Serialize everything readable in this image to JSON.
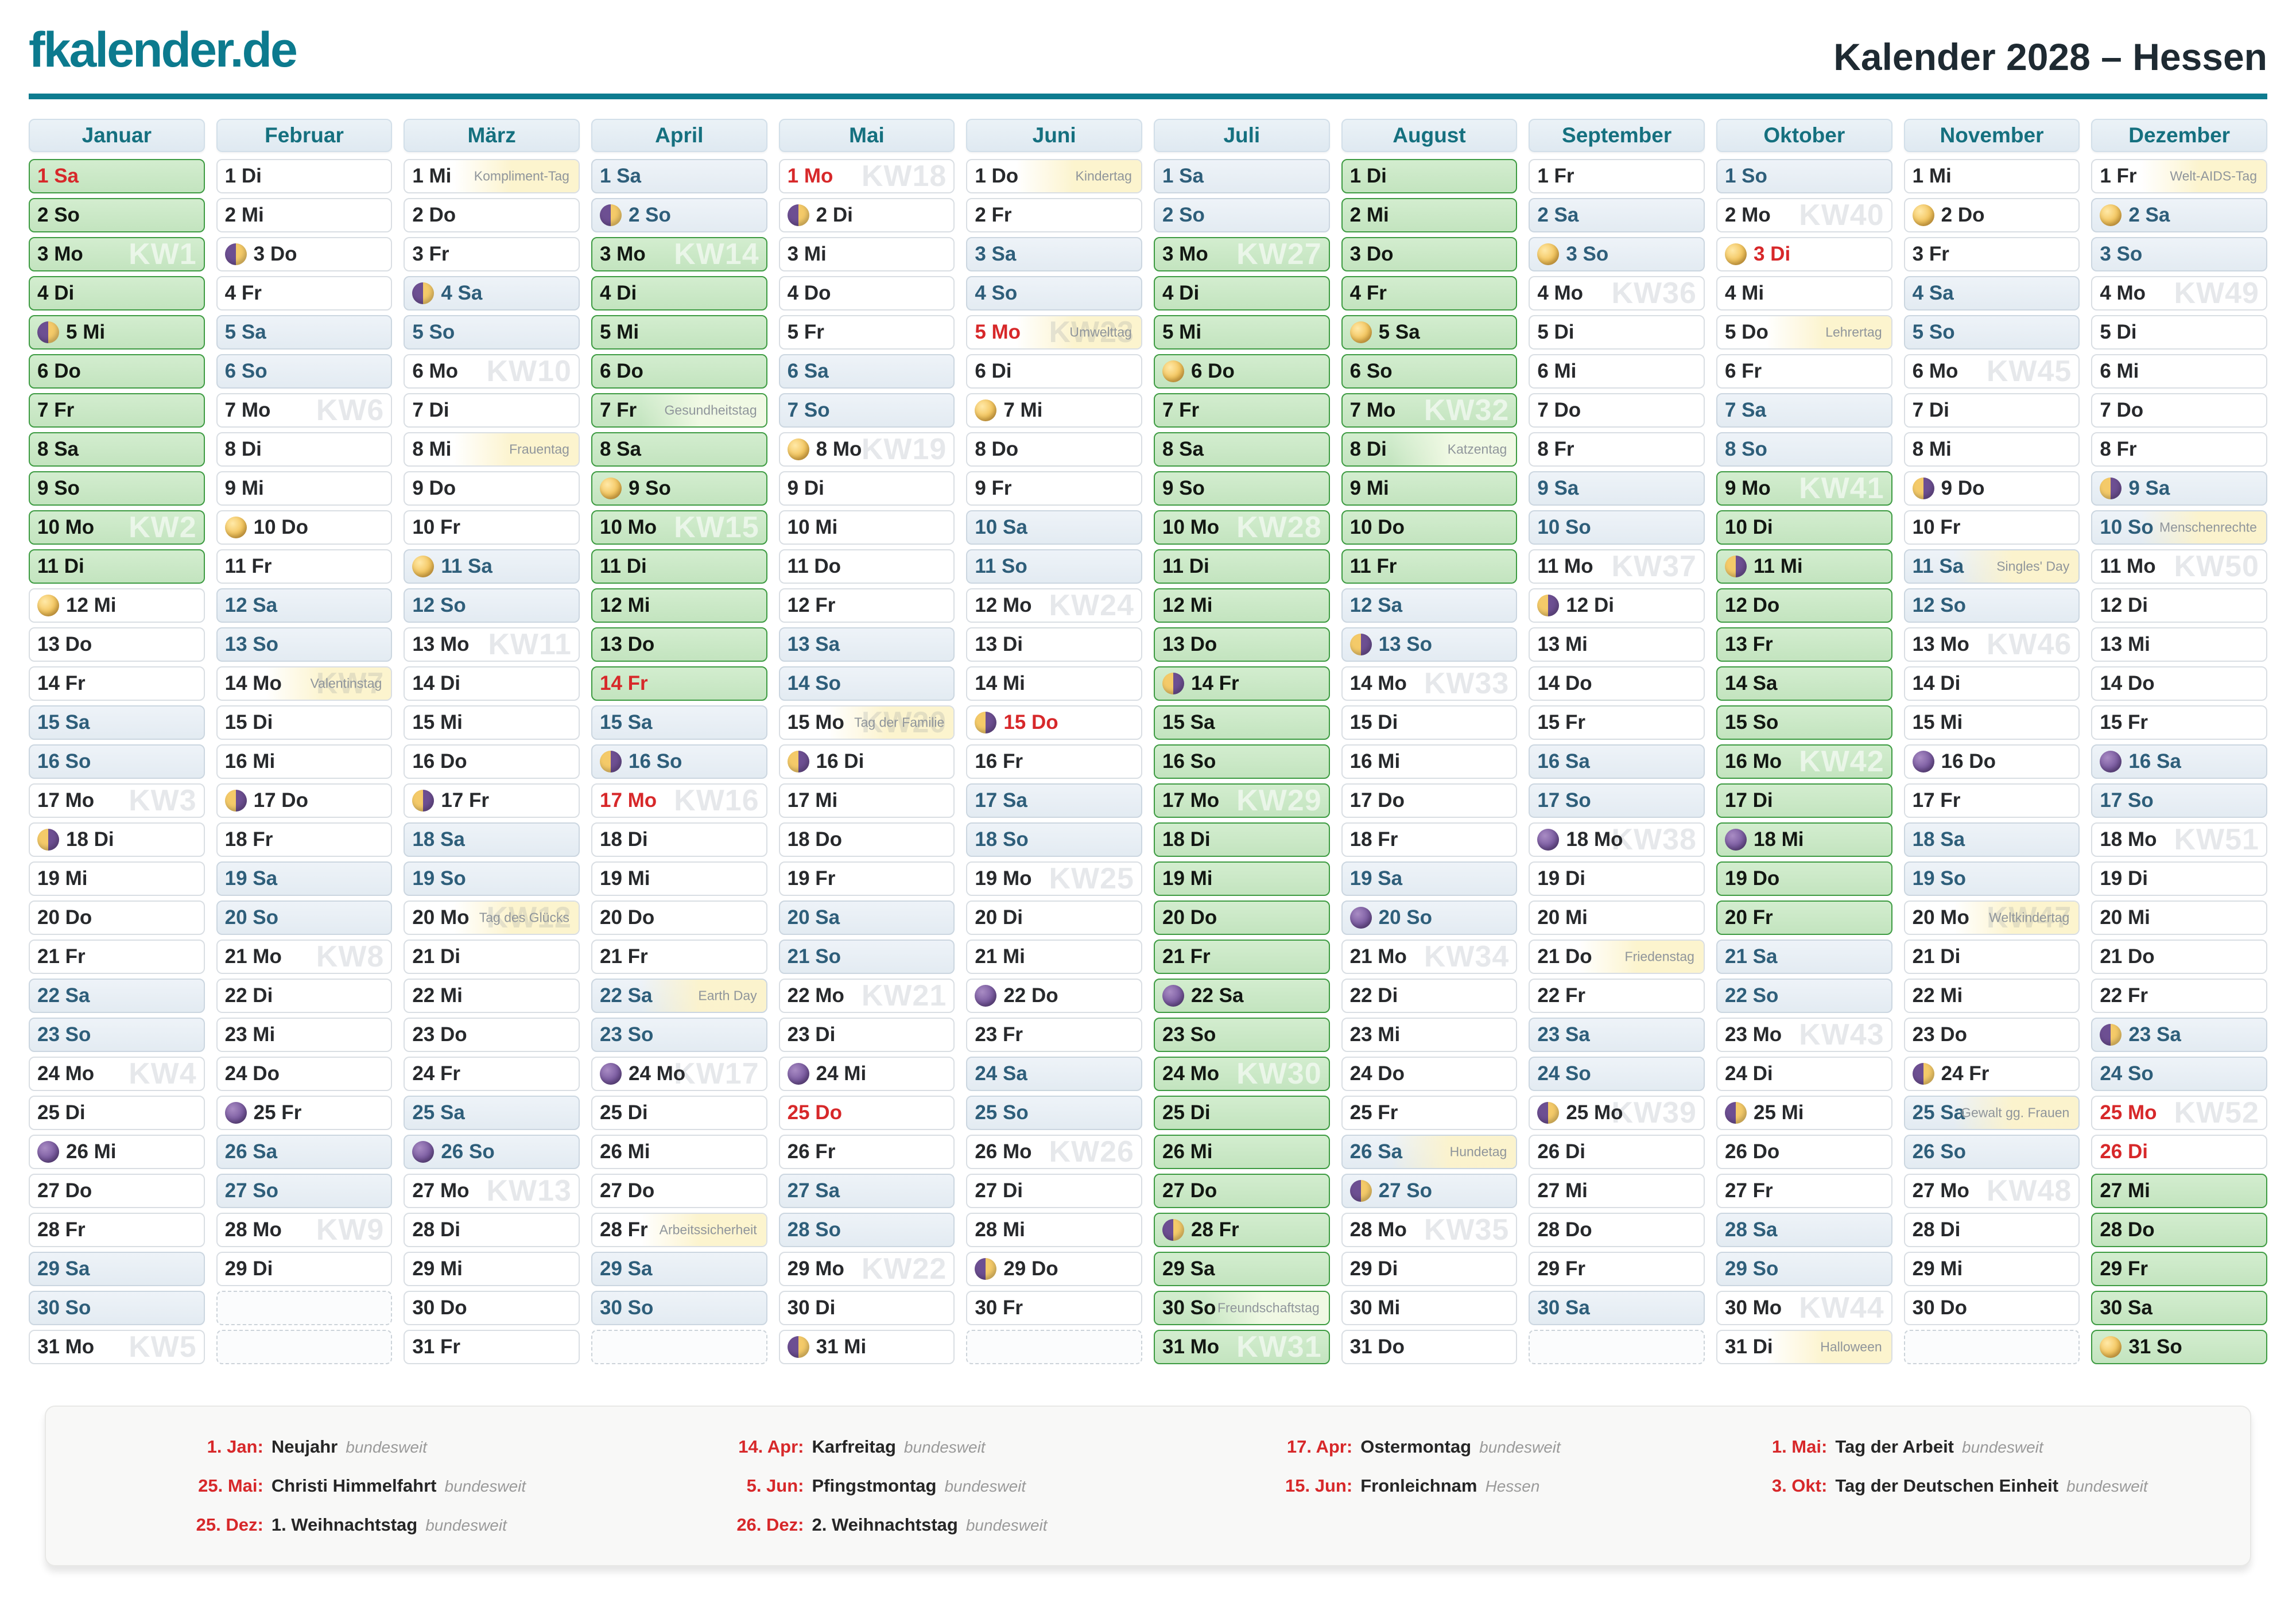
{
  "header": {
    "logo": "fkalender.de",
    "title": "Kalender 2028 – Hessen"
  },
  "weekdays": [
    "Mo",
    "Di",
    "Mi",
    "Do",
    "Fr",
    "Sa",
    "So"
  ],
  "moon_phases": {
    "full": "full-moon",
    "new": "new-moon",
    "fq": "first-quarter-moon",
    "lq": "last-quarter-moon"
  },
  "colors": {
    "accent_teal": "#0e7c90",
    "holiday_red": "#d7282a",
    "ferien_green_bg": "#c9e7c5",
    "ferien_green_border": "#3d9b42",
    "weekend_bg": "#e9eff5",
    "note_highlight": "#fcf3cb"
  },
  "months": [
    {
      "name": "Januar",
      "len": 31,
      "first_wd": 5,
      "green": [
        [
          1,
          11
        ]
      ],
      "red": [
        1
      ],
      "moons": {
        "5": "fq",
        "12": "full",
        "18": "lq",
        "26": "new"
      },
      "kw": {
        "3": "KW1",
        "10": "KW2",
        "17": "KW3",
        "24": "KW4",
        "31": "KW5"
      },
      "notes": {}
    },
    {
      "name": "Februar",
      "len": 29,
      "first_wd": 1,
      "green": [],
      "red": [],
      "moons": {
        "3": "fq",
        "10": "full",
        "17": "lq",
        "25": "new"
      },
      "kw": {
        "7": "KW6",
        "14": "KW7",
        "21": "KW8",
        "28": "KW9"
      },
      "notes": {
        "14": "Valentinstag"
      }
    },
    {
      "name": "März",
      "len": 31,
      "first_wd": 2,
      "green": [],
      "red": [],
      "moons": {
        "4": "fq",
        "11": "full",
        "17": "lq",
        "26": "new"
      },
      "kw": {
        "6": "KW10",
        "13": "KW11",
        "20": "KW12",
        "27": "KW13"
      },
      "notes": {
        "1": "Kompliment-Tag",
        "8": "Frauentag",
        "20": "Tag des Glücks"
      }
    },
    {
      "name": "April",
      "len": 30,
      "first_wd": 5,
      "green": [
        [
          3,
          14
        ]
      ],
      "red": [
        14,
        17
      ],
      "moons": {
        "2": "fq",
        "9": "full",
        "16": "lq",
        "24": "new"
      },
      "kw": {
        "3": "KW14",
        "10": "KW15",
        "17": "KW16",
        "24": "KW17"
      },
      "notes": {
        "7": "Gesundheitstag",
        "22": "Earth Day",
        "28": "Arbeitssicherheit"
      }
    },
    {
      "name": "Mai",
      "len": 31,
      "first_wd": 0,
      "green": [],
      "red": [
        1,
        25
      ],
      "moons": {
        "2": "fq",
        "8": "full",
        "16": "lq",
        "24": "new",
        "31": "fq"
      },
      "kw": {
        "1": "KW18",
        "8": "KW19",
        "15": "KW20",
        "22": "KW21",
        "29": "KW22"
      },
      "notes": {
        "15": "Tag der Familie"
      }
    },
    {
      "name": "Juni",
      "len": 30,
      "first_wd": 3,
      "green": [],
      "red": [
        5,
        15
      ],
      "moons": {
        "7": "full",
        "15": "lq",
        "22": "new",
        "29": "fq"
      },
      "kw": {
        "5": "KW23",
        "12": "KW24",
        "19": "KW25",
        "26": "KW26"
      },
      "notes": {
        "1": "Kindertag",
        "5": "Umwelttag"
      }
    },
    {
      "name": "Juli",
      "len": 31,
      "first_wd": 5,
      "green": [
        [
          3,
          31
        ]
      ],
      "red": [],
      "moons": {
        "6": "full",
        "14": "lq",
        "22": "new",
        "28": "fq"
      },
      "kw": {
        "3": "KW27",
        "10": "KW28",
        "17": "KW29",
        "24": "KW30",
        "31": "KW31"
      },
      "notes": {
        "30": "Freundschaftstag"
      }
    },
    {
      "name": "August",
      "len": 31,
      "first_wd": 1,
      "green": [
        [
          1,
          11
        ]
      ],
      "red": [],
      "moons": {
        "5": "full",
        "13": "lq",
        "20": "new",
        "27": "fq"
      },
      "kw": {
        "7": "KW32",
        "14": "KW33",
        "21": "KW34",
        "28": "KW35"
      },
      "notes": {
        "8": "Katzentag",
        "26": "Hundetag"
      }
    },
    {
      "name": "September",
      "len": 30,
      "first_wd": 4,
      "green": [],
      "red": [],
      "moons": {
        "3": "full",
        "12": "lq",
        "18": "new",
        "25": "fq"
      },
      "kw": {
        "4": "KW36",
        "11": "KW37",
        "18": "KW38",
        "25": "KW39"
      },
      "notes": {
        "21": "Friedenstag"
      }
    },
    {
      "name": "Oktober",
      "len": 31,
      "first_wd": 6,
      "green": [
        [
          9,
          20
        ]
      ],
      "red": [
        3
      ],
      "moons": {
        "3": "full",
        "11": "lq",
        "18": "new",
        "25": "fq"
      },
      "kw": {
        "2": "KW40",
        "9": "KW41",
        "16": "KW42",
        "23": "KW43",
        "30": "KW44"
      },
      "notes": {
        "5": "Lehrertag",
        "31": "Halloween"
      }
    },
    {
      "name": "November",
      "len": 30,
      "first_wd": 2,
      "green": [],
      "red": [],
      "moons": {
        "2": "full",
        "9": "lq",
        "16": "new",
        "24": "fq"
      },
      "kw": {
        "6": "KW45",
        "13": "KW46",
        "20": "KW47",
        "27": "KW48"
      },
      "notes": {
        "11": "Singles' Day",
        "20": "Weltkindertag",
        "25": "Gewalt gg. Frauen"
      }
    },
    {
      "name": "Dezember",
      "len": 31,
      "first_wd": 4,
      "green": [
        [
          27,
          31
        ]
      ],
      "red": [
        25,
        26
      ],
      "moons": {
        "2": "full",
        "9": "lq",
        "16": "new",
        "23": "fq",
        "31": "full"
      },
      "kw": {
        "4": "KW49",
        "11": "KW50",
        "18": "KW51",
        "25": "KW52"
      },
      "notes": {
        "1": "Welt-AIDS-Tag",
        "10": "Menschenrechte"
      }
    }
  ],
  "legend": {
    "columns": [
      [
        {
          "date": "1. Jan:",
          "name": "Neujahr",
          "scope": "bundesweit"
        },
        {
          "date": "25. Mai:",
          "name": "Christi Himmelfahrt",
          "scope": "bundesweit"
        },
        {
          "date": "25. Dez:",
          "name": "1. Weihnachtstag",
          "scope": "bundesweit"
        }
      ],
      [
        {
          "date": "14. Apr:",
          "name": "Karfreitag",
          "scope": "bundesweit"
        },
        {
          "date": "5. Jun:",
          "name": "Pfingstmontag",
          "scope": "bundesweit"
        },
        {
          "date": "26. Dez:",
          "name": "2. Weihnachtstag",
          "scope": "bundesweit"
        }
      ],
      [
        {
          "date": "17. Apr:",
          "name": "Ostermontag",
          "scope": "bundesweit"
        },
        {
          "date": "15. Jun:",
          "name": "Fronleichnam",
          "scope": "Hessen"
        }
      ],
      [
        {
          "date": "1. Mai:",
          "name": "Tag der Arbeit",
          "scope": "bundesweit"
        },
        {
          "date": "3. Okt:",
          "name": "Tag der Deutschen Einheit",
          "scope": "bundesweit"
        }
      ]
    ]
  }
}
